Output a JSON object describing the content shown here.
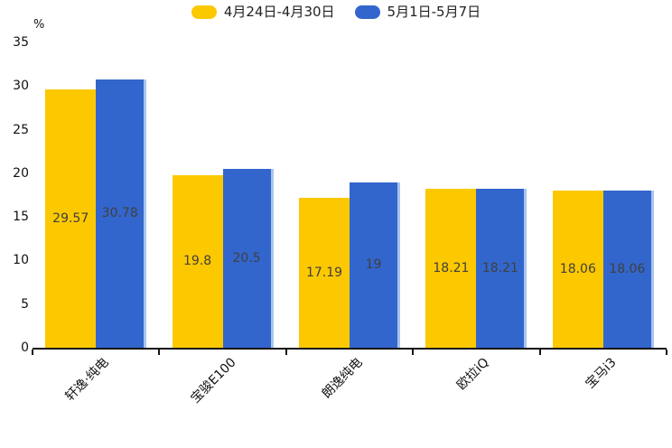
{
  "chart_data": {
    "type": "bar",
    "unit_label": "%",
    "categories": [
      "轩逸·纯电",
      "宝骏E100",
      "朗逸纯电",
      "欧拉iQ",
      "宝马i3"
    ],
    "series": [
      {
        "name": "4月24日-4月30日",
        "color": "#FCC800",
        "values": [
          29.57,
          19.8,
          17.19,
          18.21,
          18.06
        ]
      },
      {
        "name": "5月1日-5月7日",
        "color": "#3366CC",
        "edge_color": "#A9C4F0",
        "values": [
          30.78,
          20.5,
          19,
          18.21,
          18.06
        ]
      }
    ],
    "value_labels": [
      "29.57",
      "30.78",
      "19.8",
      "20.5",
      "17.19",
      "19",
      "18.21",
      "18.21",
      "18.06",
      "18.06"
    ],
    "ylim": [
      0,
      35
    ],
    "yticks": [
      0,
      5,
      10,
      15,
      20,
      25,
      30,
      35
    ],
    "grid": false,
    "legend_position": "top-center",
    "value_label_position": "inside-center",
    "colors": {
      "axis": "#141414",
      "tick_text": "#111111",
      "value_label_text": "#404040",
      "background": "#FFFFFF"
    }
  }
}
